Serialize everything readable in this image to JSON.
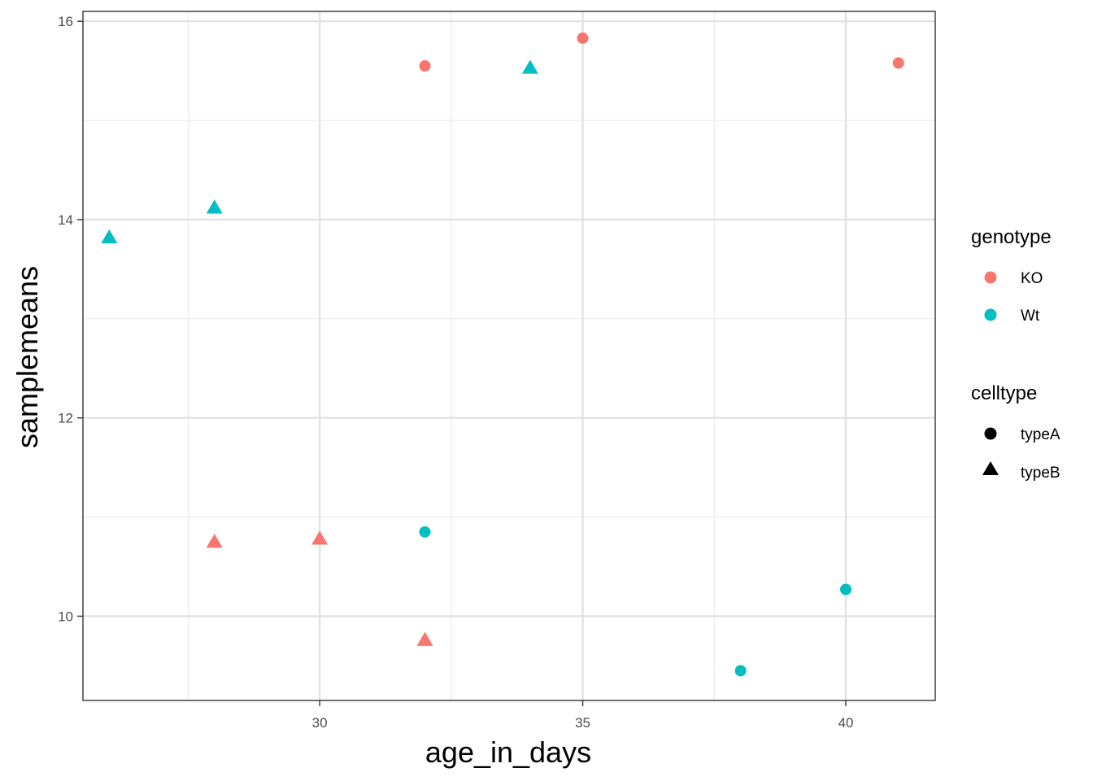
{
  "chart_data": {
    "type": "scatter",
    "xlabel": "age_in_days",
    "ylabel": "samplemeans",
    "xlim": [
      25.5,
      41.7
    ],
    "ylim": [
      9.15,
      16.1
    ],
    "x_ticks": [
      30,
      35,
      40
    ],
    "y_ticks": [
      10,
      12,
      14,
      16
    ],
    "x_tick_labels": [
      "30",
      "35",
      "40"
    ],
    "y_tick_labels": [
      "10",
      "12",
      "14",
      "16"
    ],
    "grid": true,
    "legend_position": "right",
    "legends": [
      {
        "title": "genotype",
        "aesthetic": "color",
        "entries": [
          {
            "label": "KO",
            "color": "#F8766D"
          },
          {
            "label": "Wt",
            "color": "#00BFC4"
          }
        ]
      },
      {
        "title": "celltype",
        "aesthetic": "shape",
        "entries": [
          {
            "label": "typeA",
            "shape": "circle"
          },
          {
            "label": "typeB",
            "shape": "triangle"
          }
        ]
      }
    ],
    "points": [
      {
        "x": 32,
        "y": 15.55,
        "genotype": "KO",
        "celltype": "typeA"
      },
      {
        "x": 35,
        "y": 15.83,
        "genotype": "KO",
        "celltype": "typeA"
      },
      {
        "x": 41,
        "y": 15.58,
        "genotype": "KO",
        "celltype": "typeA"
      },
      {
        "x": 28,
        "y": 10.75,
        "genotype": "KO",
        "celltype": "typeB"
      },
      {
        "x": 30,
        "y": 10.78,
        "genotype": "KO",
        "celltype": "typeB"
      },
      {
        "x": 32,
        "y": 9.76,
        "genotype": "KO",
        "celltype": "typeB"
      },
      {
        "x": 32,
        "y": 10.85,
        "genotype": "Wt",
        "celltype": "typeA"
      },
      {
        "x": 38,
        "y": 9.45,
        "genotype": "Wt",
        "celltype": "typeA"
      },
      {
        "x": 40,
        "y": 10.27,
        "genotype": "Wt",
        "celltype": "typeA"
      },
      {
        "x": 26,
        "y": 13.82,
        "genotype": "Wt",
        "celltype": "typeB"
      },
      {
        "x": 28,
        "y": 14.12,
        "genotype": "Wt",
        "celltype": "typeB"
      },
      {
        "x": 34,
        "y": 15.53,
        "genotype": "Wt",
        "celltype": "typeB"
      }
    ]
  }
}
